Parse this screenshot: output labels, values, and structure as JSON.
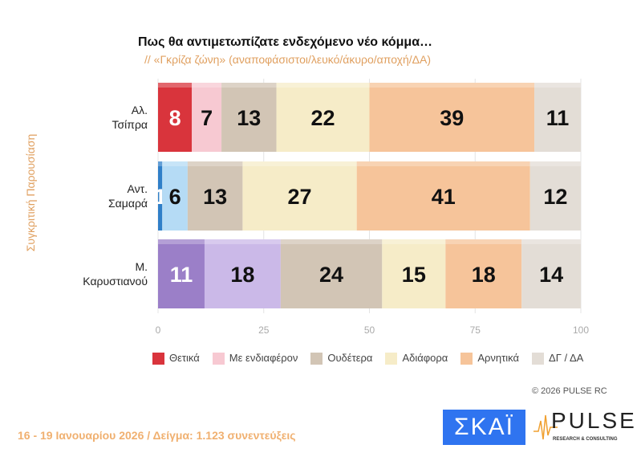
{
  "title": "Πως θα αντιμετωπίζατε ενδεχόμενο νέο κόμμα…",
  "subtitle": "// «Γκρίζα ζώνη» (αναποφάσιστοι/λευκό/άκυρο/αποχή/ΔΑ)",
  "copyright": "© 2026 PULSE RC",
  "footer": "16 - 19 Ιανουαρίου 2026  /  Δείγμα:  1.123 συνεντεύξεις",
  "logos": {
    "skai": "ΣΚΑΪ",
    "pulse": "PULSE",
    "pulse_tagline": "RESEARCH & CONSULTING"
  },
  "chart_data": {
    "type": "bar",
    "orientation": "horizontal-stacked",
    "ylabel": "Συγκριτική Παρουσίαση",
    "categories": [
      [
        "Αλ.",
        "Τσίπρα"
      ],
      [
        "Αντ.",
        "Σαμαρά"
      ],
      [
        "Μ.",
        "Καρυστιανού"
      ]
    ],
    "series": [
      {
        "name": "Θετικά",
        "values": [
          8,
          1,
          11
        ],
        "colors": [
          "#d9343c",
          "#2f7fc8",
          "#9b7fc8"
        ]
      },
      {
        "name": "Με ενδιαφέρον",
        "values": [
          7,
          6,
          18
        ],
        "colors": [
          "#f7c9d2",
          "#b5dbf5",
          "#cbb9e8"
        ]
      },
      {
        "name": "Ουδέτερα",
        "values": [
          13,
          13,
          24
        ],
        "colors": [
          "#d2c5b5",
          "#d2c5b5",
          "#d2c5b5"
        ]
      },
      {
        "name": "Αδιάφορα",
        "values": [
          22,
          27,
          15
        ],
        "colors": [
          "#f6ecc8",
          "#f6ecc8",
          "#f6ecc8"
        ]
      },
      {
        "name": "Αρνητικά",
        "values": [
          39,
          41,
          18
        ],
        "colors": [
          "#f6c49a",
          "#f6c49a",
          "#f6c49a"
        ]
      },
      {
        "name": "ΔΓ / ΔΑ",
        "values": [
          11,
          12,
          14
        ],
        "colors": [
          "#e3ddd6",
          "#e3ddd6",
          "#e3ddd6"
        ]
      }
    ],
    "label_colors": [
      [
        "#fff",
        "#111",
        "#111",
        "#111",
        "#111",
        "#111"
      ],
      [
        "#fff",
        "#111",
        "#111",
        "#111",
        "#111",
        "#111"
      ],
      [
        "#fff",
        "#111",
        "#111",
        "#111",
        "#111",
        "#111"
      ]
    ],
    "xlim": [
      0,
      100
    ],
    "xticks": [
      0,
      25,
      50,
      75,
      100
    ],
    "legend_colors": [
      "#d9343c",
      "#f7c9d2",
      "#d2c5b5",
      "#f6ecc8",
      "#f6c49a",
      "#e3ddd6"
    ],
    "legend": "bottom",
    "grid": true
  }
}
